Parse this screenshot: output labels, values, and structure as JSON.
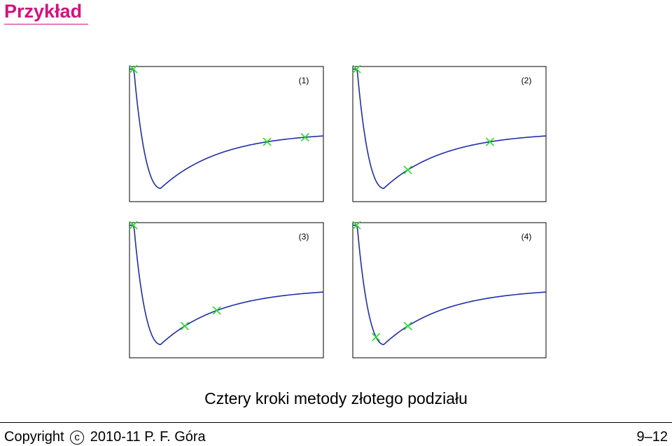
{
  "slide": {
    "title": "Przykład",
    "caption": "Cztery kroki metody złotego podziału",
    "footer_left_prefix": "Copyright",
    "footer_copyright_symbol": "c",
    "footer_left_suffix": "2010-11 P. F. Góra",
    "footer_right": "9–12"
  },
  "colors": {
    "title": "#d4127e",
    "curve": "#1f2ea8",
    "marker": "#22dd22"
  },
  "chart_data": [
    {
      "type": "line",
      "label": "(1)",
      "xlim": [
        0,
        1
      ],
      "ylim": [
        0,
        1
      ],
      "curve": "potential-well",
      "markers_x": [
        0.02,
        0.71,
        0.905
      ]
    },
    {
      "type": "line",
      "label": "(2)",
      "xlim": [
        0,
        1
      ],
      "ylim": [
        0,
        1
      ],
      "curve": "potential-well",
      "markers_x": [
        0.02,
        0.285,
        0.71
      ]
    },
    {
      "type": "line",
      "label": "(3)",
      "xlim": [
        0,
        1
      ],
      "ylim": [
        0,
        1
      ],
      "curve": "potential-well",
      "markers_x": [
        0.02,
        0.285,
        0.45
      ]
    },
    {
      "type": "line",
      "label": "(4)",
      "xlim": [
        0,
        1
      ],
      "ylim": [
        0,
        1
      ],
      "curve": "potential-well",
      "markers_x": [
        0.02,
        0.12,
        0.285
      ]
    }
  ]
}
